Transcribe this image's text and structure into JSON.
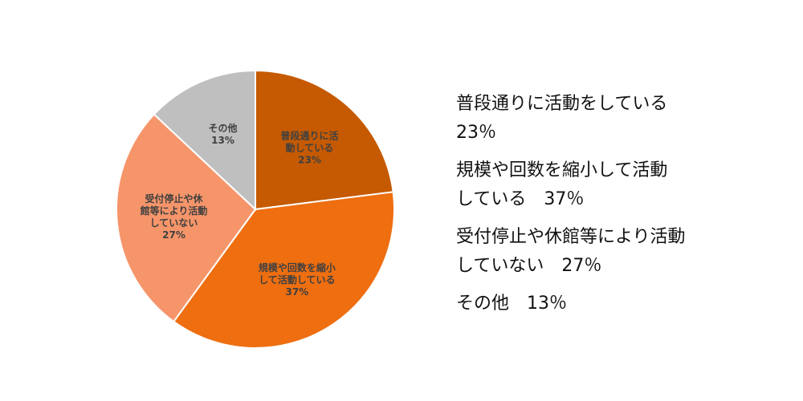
{
  "chart_data": {
    "type": "pie",
    "slices": [
      {
        "id": "normal",
        "label_lines": [
          "普段通りに活",
          "動している",
          "23%"
        ],
        "value": 23,
        "color": "#c55a02"
      },
      {
        "id": "reduced",
        "label_lines": [
          "規模や回数を縮小",
          "して活動している",
          "37%"
        ],
        "value": 37,
        "color": "#ee6e10"
      },
      {
        "id": "suspended",
        "label_lines": [
          "受付停止や休",
          "館等により活動",
          "していない",
          "27%"
        ],
        "value": 27,
        "color": "#f6956a"
      },
      {
        "id": "other",
        "label_lines": [
          "その他",
          "13%"
        ],
        "value": 13,
        "color": "#bfbfbf"
      }
    ]
  },
  "legend": {
    "items": [
      {
        "lines": [
          "普段通りに活動をしている",
          "23％"
        ]
      },
      {
        "lines": [
          "規模や回数を縮小して活動",
          "している　37％"
        ]
      },
      {
        "lines": [
          "受付停止や休館等により活動",
          "していない　27％"
        ]
      },
      {
        "lines": [
          "その他　13％"
        ]
      }
    ]
  }
}
